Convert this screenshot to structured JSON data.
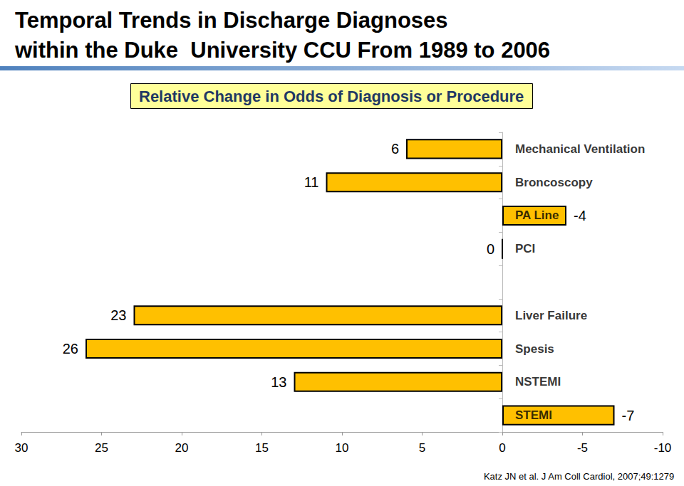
{
  "chart_data": {
    "type": "bar",
    "title": "Temporal Trends in Discharge Diagnoses\nwithin the Duke  University CCU From 1989 to 2006",
    "subtitle": "Relative Change in Odds of Diagnosis or Procedure",
    "annotations": [
      "Katz JN et al. J Am Coll Cardiol, 2007;49:1279"
    ],
    "orientation": "horizontal",
    "categories": [
      "Mechanical Ventilation",
      "Broncoscopy",
      "PA Line",
      "PCI",
      null,
      "Liver Failure",
      "Spesis",
      "NSTEMI",
      "STEMI"
    ],
    "values": [
      6,
      11,
      -4,
      0,
      null,
      23,
      26,
      13,
      -7
    ],
    "color": "#FFC000",
    "xlim": [
      30,
      -10
    ],
    "xticks": [
      30,
      25,
      20,
      15,
      10,
      5,
      0,
      -5,
      -10
    ],
    "data_labels": true,
    "grid": false
  }
}
